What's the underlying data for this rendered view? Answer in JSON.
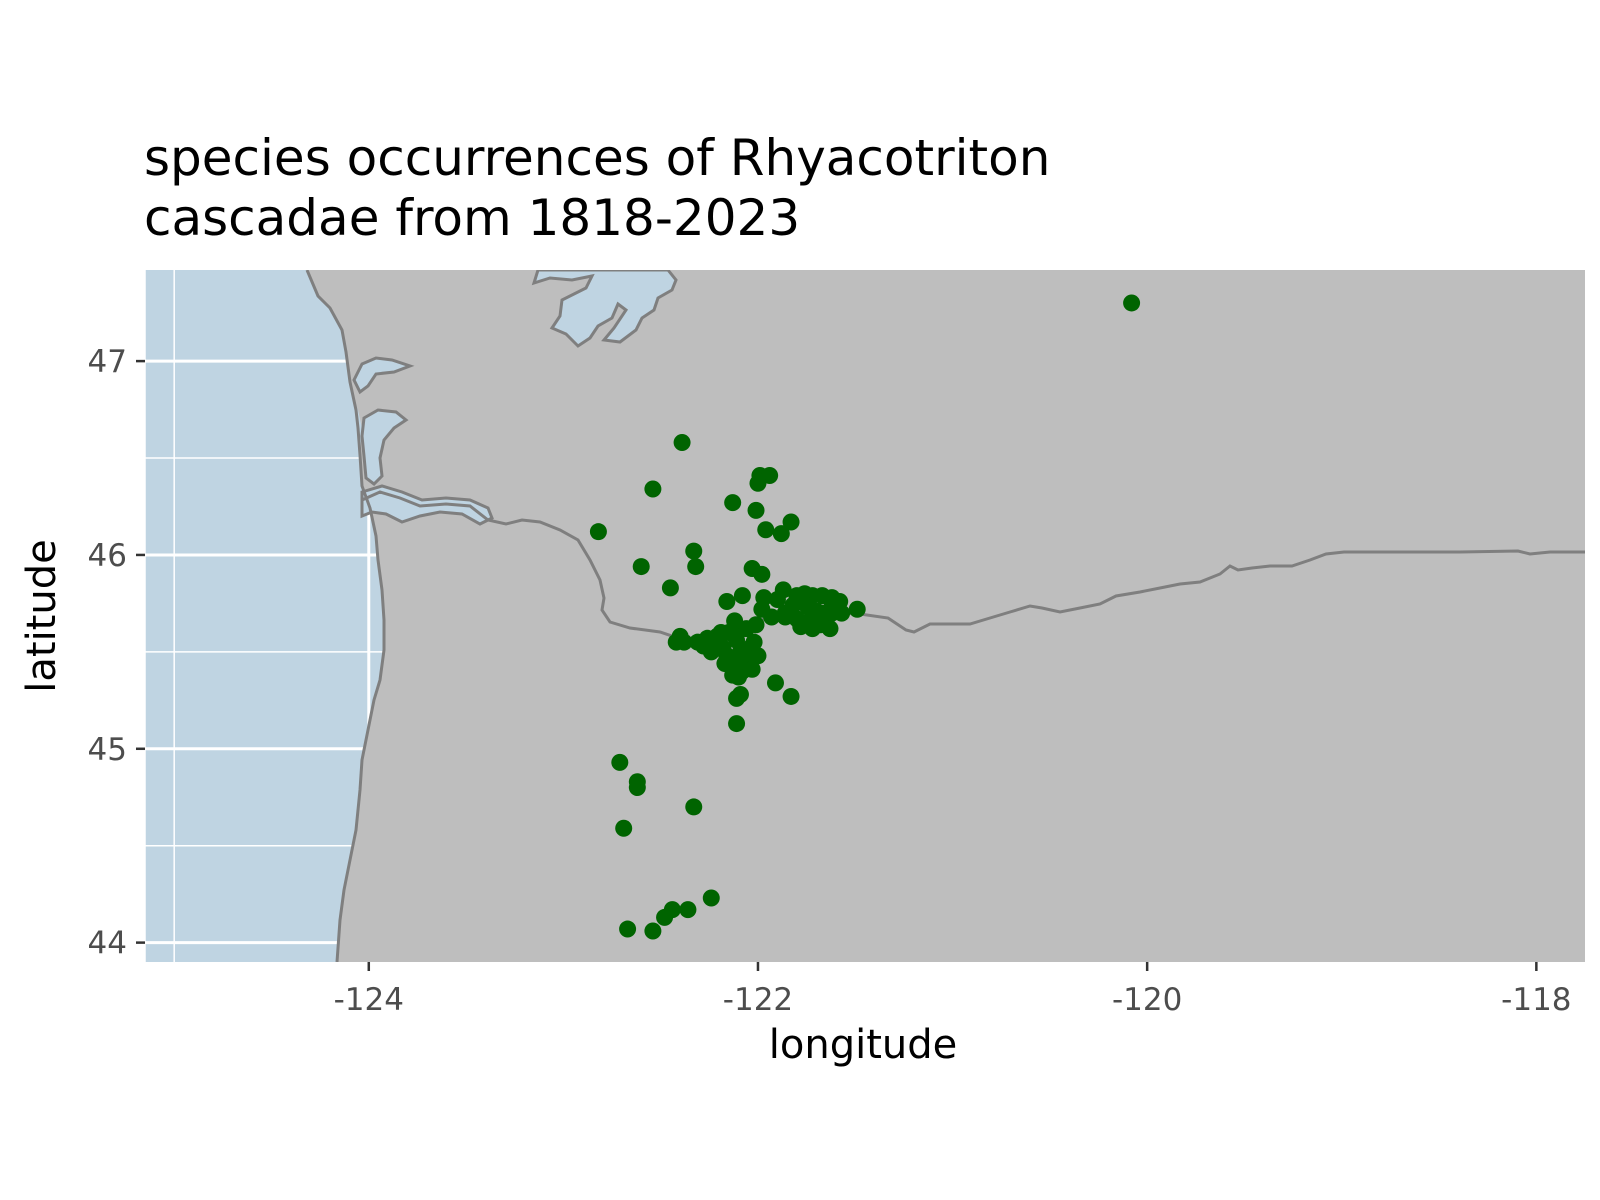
{
  "chart_data": {
    "type": "scatter",
    "title_lines": [
      "species occurrences of Rhyacotriton",
      "cascadae from 1818-2023"
    ],
    "xlabel": "longitude",
    "ylabel": "latitude",
    "xlim": [
      -125.15,
      -117.75
    ],
    "ylim": [
      43.9,
      47.47
    ],
    "x_ticks": [
      -124,
      -122,
      -120,
      -118
    ],
    "x_tick_labels": [
      "-124",
      "-122",
      "-120",
      "-118"
    ],
    "y_ticks": [
      44,
      45,
      46,
      47
    ],
    "y_tick_labels": [
      "44",
      "45",
      "46",
      "47"
    ],
    "grid": true,
    "legend": "none",
    "colors": {
      "ocean": "#bfd4e2",
      "land": "#bebebe",
      "border": "#7f7f7f",
      "grid": "#ffffff",
      "points": "#006400"
    },
    "basemap_features": [
      "Pacific Ocean",
      "Puget Sound",
      "Columbia River",
      "Washington–Oregon state border"
    ],
    "points": {
      "x": [
        -120.08,
        -122.39,
        -122.54,
        -121.99,
        -121.94,
        -122.0,
        -122.13,
        -122.01,
        -121.96,
        -121.88,
        -121.83,
        -122.82,
        -122.33,
        -122.6,
        -122.32,
        -122.45,
        -122.03,
        -121.98,
        -121.87,
        -121.8,
        -121.76,
        -121.72,
        -121.67,
        -121.62,
        -121.58,
        -121.49,
        -121.7,
        -121.62,
        -121.57,
        -121.65,
        -121.75,
        -121.86,
        -121.93,
        -121.98,
        -121.9,
        -121.82,
        -122.01,
        -122.06,
        -122.1,
        -122.15,
        -122.21,
        -122.26,
        -122.31,
        -122.38,
        -122.42,
        -122.18,
        -122.24,
        -122.16,
        -122.09,
        -122.04,
        -122.12,
        -122.07,
        -122.0,
        -122.02,
        -122.11,
        -122.14,
        -122.19,
        -122.2,
        -122.23,
        -122.28,
        -122.17,
        -122.08,
        -122.05,
        -122.03,
        -122.13,
        -122.1,
        -121.86,
        -121.8,
        -121.78,
        -121.72,
        -121.68,
        -121.63,
        -121.69,
        -121.75,
        -121.62,
        -122.16,
        -122.08,
        -122.12,
        -122.4,
        -122.16,
        -121.91,
        -121.83,
        -122.11,
        -122.09,
        -122.11,
        -122.71,
        -122.62,
        -122.62,
        -122.33,
        -122.69,
        -122.24,
        -122.44,
        -122.48,
        -122.67,
        -122.54,
        -122.36,
        -121.66,
        -121.74,
        -121.97
      ],
      "y": [
        47.3,
        46.58,
        46.34,
        46.41,
        46.41,
        46.37,
        46.27,
        46.23,
        46.13,
        46.11,
        46.17,
        46.12,
        46.02,
        45.94,
        45.94,
        45.83,
        45.93,
        45.9,
        45.82,
        45.79,
        45.8,
        45.79,
        45.79,
        45.78,
        45.76,
        45.72,
        45.71,
        45.7,
        45.7,
        45.66,
        45.65,
        45.7,
        45.68,
        45.72,
        45.77,
        45.74,
        45.64,
        45.62,
        45.61,
        45.6,
        45.58,
        45.57,
        45.55,
        45.55,
        45.55,
        45.52,
        45.5,
        45.48,
        45.5,
        45.52,
        45.45,
        45.42,
        45.48,
        45.55,
        45.56,
        45.6,
        45.6,
        45.56,
        45.55,
        45.53,
        45.44,
        45.4,
        45.44,
        45.41,
        45.38,
        45.37,
        45.68,
        45.67,
        45.63,
        45.62,
        45.64,
        45.62,
        45.67,
        45.74,
        45.76,
        45.76,
        45.79,
        45.66,
        45.58,
        45.44,
        45.34,
        45.27,
        45.26,
        45.28,
        45.13,
        44.93,
        44.83,
        44.8,
        44.7,
        44.59,
        44.23,
        44.17,
        44.13,
        44.07,
        44.06,
        44.17,
        45.7,
        45.73,
        45.78
      ]
    }
  }
}
